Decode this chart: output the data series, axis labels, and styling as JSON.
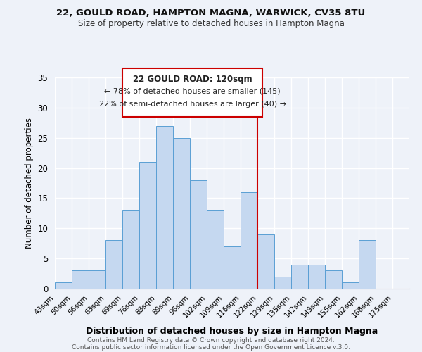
{
  "title": "22, GOULD ROAD, HAMPTON MAGNA, WARWICK, CV35 8TU",
  "subtitle": "Size of property relative to detached houses in Hampton Magna",
  "xlabel": "Distribution of detached houses by size in Hampton Magna",
  "ylabel": "Number of detached properties",
  "footer1": "Contains HM Land Registry data © Crown copyright and database right 2024.",
  "footer2": "Contains public sector information licensed under the Open Government Licence v.3.0.",
  "bin_labels": [
    "43sqm",
    "50sqm",
    "56sqm",
    "63sqm",
    "69sqm",
    "76sqm",
    "83sqm",
    "89sqm",
    "96sqm",
    "102sqm",
    "109sqm",
    "116sqm",
    "122sqm",
    "129sqm",
    "135sqm",
    "142sqm",
    "149sqm",
    "155sqm",
    "162sqm",
    "168sqm",
    "175sqm"
  ],
  "bar_values": [
    1,
    3,
    3,
    8,
    13,
    21,
    27,
    25,
    18,
    13,
    7,
    16,
    9,
    2,
    4,
    4,
    3,
    1,
    8,
    0,
    0
  ],
  "bar_color": "#c5d8f0",
  "bar_edge_color": "#5a9fd4",
  "ylim": [
    0,
    35
  ],
  "yticks": [
    0,
    5,
    10,
    15,
    20,
    25,
    30,
    35
  ],
  "property_line_x": 12,
  "property_line_color": "#cc0000",
  "annotation_title": "22 GOULD ROAD: 120sqm",
  "annotation_line1": "← 78% of detached houses are smaller (145)",
  "annotation_line2": "22% of semi-detached houses are larger (40) →",
  "background_color": "#eef2f9"
}
